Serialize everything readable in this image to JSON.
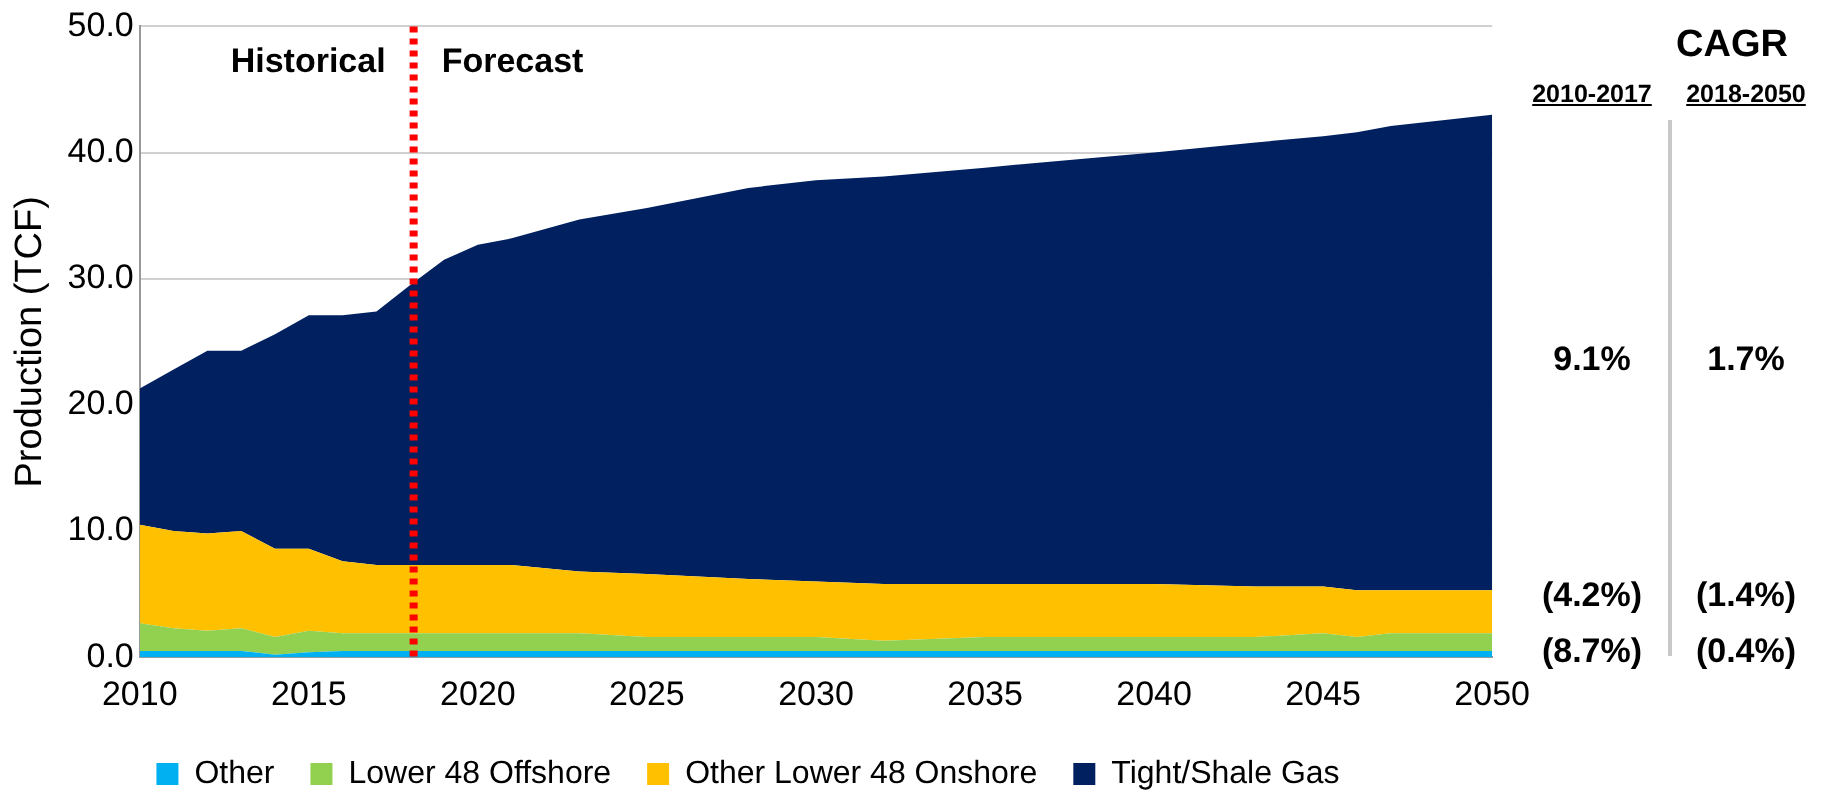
{
  "chart_data": {
    "type": "area",
    "stacked": true,
    "ylabel": "Production (TCF)",
    "x": [
      2010,
      2011,
      2012,
      2013,
      2014,
      2015,
      2016,
      2017,
      2018,
      2019,
      2020,
      2021,
      2023,
      2025,
      2028,
      2030,
      2032,
      2035,
      2037,
      2040,
      2043,
      2045,
      2046,
      2047,
      2050
    ],
    "series": [
      {
        "name": "Other",
        "color": "#00b0f0",
        "values": [
          0.5,
          0.5,
          0.5,
          0.5,
          0.2,
          0.4,
          0.5,
          0.5,
          0.5,
          0.5,
          0.5,
          0.5,
          0.5,
          0.5,
          0.5,
          0.5,
          0.5,
          0.5,
          0.5,
          0.5,
          0.5,
          0.5,
          0.5,
          0.5,
          0.5
        ]
      },
      {
        "name": "Lower 48 Offshore",
        "color": "#92d050",
        "values": [
          2.2,
          1.8,
          1.6,
          1.8,
          1.4,
          1.7,
          1.4,
          1.4,
          1.4,
          1.4,
          1.4,
          1.4,
          1.4,
          1.1,
          1.1,
          1.1,
          0.8,
          1.1,
          1.1,
          1.1,
          1.1,
          1.4,
          1.1,
          1.4,
          1.4
        ]
      },
      {
        "name": "Other Lower 48 Onshore",
        "color": "#ffc000",
        "values": [
          7.8,
          7.7,
          7.7,
          7.7,
          7.0,
          6.5,
          5.7,
          5.4,
          5.4,
          5.4,
          5.4,
          5.4,
          4.9,
          5.0,
          4.6,
          4.4,
          4.5,
          4.2,
          4.2,
          4.2,
          4.0,
          3.7,
          3.7,
          3.4,
          3.4
        ]
      },
      {
        "name": "Tight/Shale Gas",
        "color": "#002060",
        "values": [
          10.8,
          12.8,
          14.5,
          14.3,
          17.0,
          18.5,
          19.5,
          20.1,
          22.2,
          24.2,
          25.4,
          25.9,
          27.9,
          29.0,
          31.0,
          31.8,
          32.3,
          33.0,
          33.5,
          34.2,
          35.2,
          35.7,
          36.3,
          36.8,
          37.7
        ]
      }
    ],
    "xlim": [
      2010,
      2050
    ],
    "xticks": [
      2010,
      2015,
      2020,
      2025,
      2030,
      2035,
      2040,
      2045,
      2050
    ],
    "ylim": [
      0,
      50
    ],
    "yticks": [
      {
        "value": 0,
        "label": "0.0"
      },
      {
        "value": 10,
        "label": "10.0"
      },
      {
        "value": 20,
        "label": "20.0"
      },
      {
        "value": 30,
        "label": "30.0"
      },
      {
        "value": 40,
        "label": "40.0"
      },
      {
        "value": 50,
        "label": "50.0"
      }
    ],
    "grid": "y",
    "legend": "bottom",
    "marker": "none",
    "ref_lines": [
      {
        "axis": "x",
        "value": 2018.1,
        "color": "#ff0000",
        "line_style": "dotted"
      }
    ],
    "annotations": [
      "Historical",
      "Forecast",
      "CAGR",
      "2010-2017",
      "2018-2050",
      "9.1%",
      "1.7%",
      "(4.2%)",
      "(1.4%)",
      "(8.7%)",
      "(0.4%)"
    ]
  }
}
